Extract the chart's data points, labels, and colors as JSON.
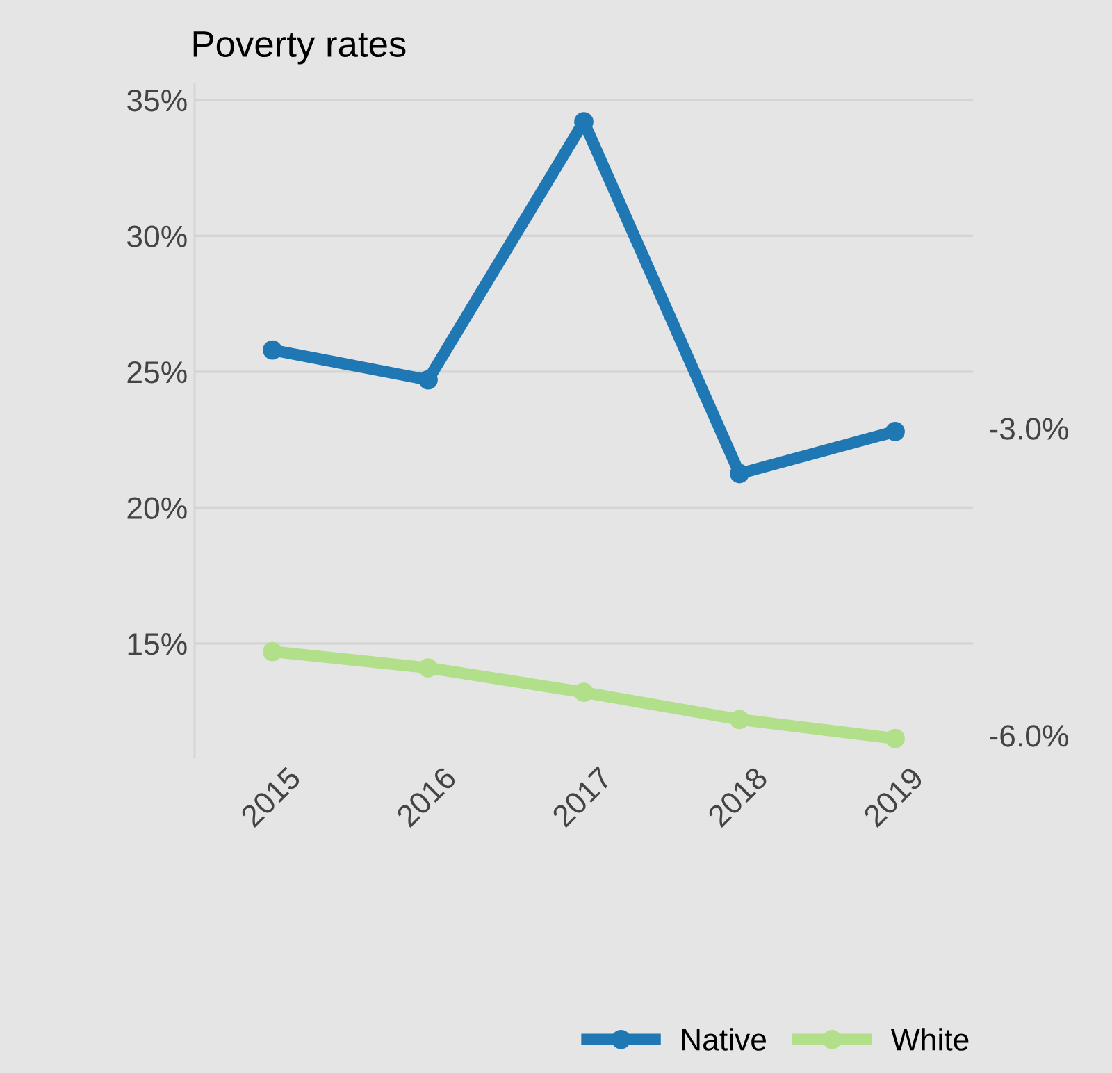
{
  "chart_data": {
    "type": "line",
    "title": "Poverty rates",
    "categories": [
      "2015",
      "2016",
      "2017",
      "2018",
      "2019"
    ],
    "series": [
      {
        "name": "Native",
        "color": "#1f78b4",
        "values": [
          25.8,
          24.7,
          34.2,
          21.25,
          22.8
        ]
      },
      {
        "name": "White",
        "color": "#b2df8a",
        "values": [
          14.7,
          14.1,
          13.2,
          12.2,
          11.5
        ]
      }
    ],
    "ylim": [
      10.8,
      35.6
    ],
    "yticks": [
      {
        "value": 15,
        "label": "15%"
      },
      {
        "value": 20,
        "label": "20%"
      },
      {
        "value": 25,
        "label": "25%"
      },
      {
        "value": 30,
        "label": "30%"
      },
      {
        "value": 35,
        "label": "35%"
      }
    ],
    "annotations": [
      "-3.0%",
      "-6.0%"
    ],
    "grid": "y",
    "legend": "bottom",
    "marker": "circle",
    "line_style": "solid"
  }
}
